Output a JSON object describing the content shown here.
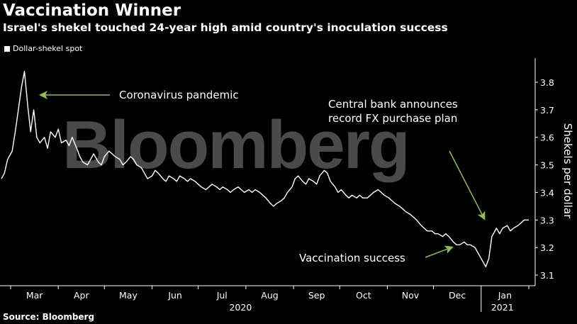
{
  "title": "Vaccination Winner",
  "subtitle": "Israel's shekel touched 24-year high amid country's inoculation success",
  "source": "Source: Bloomberg",
  "watermark": "Bloomberg",
  "colors": {
    "background": "#000000",
    "line": "#ffffff",
    "annotation_arrow": "#8bc34a"
  },
  "chart_data": {
    "type": "line",
    "title": "",
    "xlabel": "",
    "ylabel": "Shekels per dollar",
    "ylim": [
      3.05,
      3.9
    ],
    "grid": false,
    "legend_position": "top-left",
    "x_tick_labels": [
      "Mar",
      "Apr",
      "May",
      "Jun",
      "Jul",
      "Aug",
      "Sep",
      "Oct",
      "Nov",
      "Dec",
      "Jan"
    ],
    "x_group_labels": [
      "2020",
      "2021"
    ],
    "y_ticks": [
      3.1,
      3.2,
      3.3,
      3.4,
      3.5,
      3.6,
      3.7,
      3.8
    ],
    "annotations": [
      {
        "text": "Coronavirus pandemic"
      },
      {
        "text": "Central bank announces"
      },
      {
        "text": "record FX purchase plan"
      },
      {
        "text": "Vaccination success"
      }
    ],
    "series": [
      {
        "name": "Dollar-shekel spot",
        "points": [
          [
            "2020-02-24",
            3.45
          ],
          [
            "2020-02-26",
            3.47
          ],
          [
            "2020-02-28",
            3.52
          ],
          [
            "2020-03-02",
            3.55
          ],
          [
            "2020-03-04",
            3.62
          ],
          [
            "2020-03-06",
            3.7
          ],
          [
            "2020-03-08",
            3.78
          ],
          [
            "2020-03-10",
            3.84
          ],
          [
            "2020-03-12",
            3.72
          ],
          [
            "2020-03-14",
            3.62
          ],
          [
            "2020-03-16",
            3.7
          ],
          [
            "2020-03-18",
            3.6
          ],
          [
            "2020-03-20",
            3.58
          ],
          [
            "2020-03-23",
            3.6
          ],
          [
            "2020-03-25",
            3.56
          ],
          [
            "2020-03-27",
            3.62
          ],
          [
            "2020-03-30",
            3.6
          ],
          [
            "2020-04-01",
            3.63
          ],
          [
            "2020-04-03",
            3.58
          ],
          [
            "2020-04-06",
            3.59
          ],
          [
            "2020-04-08",
            3.57
          ],
          [
            "2020-04-10",
            3.6
          ],
          [
            "2020-04-13",
            3.56
          ],
          [
            "2020-04-15",
            3.53
          ],
          [
            "2020-04-17",
            3.51
          ],
          [
            "2020-04-20",
            3.5
          ],
          [
            "2020-04-22",
            3.52
          ],
          [
            "2020-04-24",
            3.54
          ],
          [
            "2020-04-27",
            3.51
          ],
          [
            "2020-04-29",
            3.5
          ],
          [
            "2020-05-01",
            3.53
          ],
          [
            "2020-05-04",
            3.55
          ],
          [
            "2020-05-06",
            3.54
          ],
          [
            "2020-05-08",
            3.53
          ],
          [
            "2020-05-11",
            3.52
          ],
          [
            "2020-05-13",
            3.5
          ],
          [
            "2020-05-15",
            3.51
          ],
          [
            "2020-05-18",
            3.53
          ],
          [
            "2020-05-20",
            3.52
          ],
          [
            "2020-05-22",
            3.5
          ],
          [
            "2020-05-25",
            3.49
          ],
          [
            "2020-05-27",
            3.47
          ],
          [
            "2020-05-29",
            3.45
          ],
          [
            "2020-06-01",
            3.46
          ],
          [
            "2020-06-03",
            3.48
          ],
          [
            "2020-06-05",
            3.47
          ],
          [
            "2020-06-08",
            3.45
          ],
          [
            "2020-06-10",
            3.44
          ],
          [
            "2020-06-12",
            3.46
          ],
          [
            "2020-06-15",
            3.45
          ],
          [
            "2020-06-17",
            3.44
          ],
          [
            "2020-06-19",
            3.46
          ],
          [
            "2020-06-22",
            3.45
          ],
          [
            "2020-06-24",
            3.44
          ],
          [
            "2020-06-26",
            3.45
          ],
          [
            "2020-06-29",
            3.44
          ],
          [
            "2020-07-01",
            3.43
          ],
          [
            "2020-07-03",
            3.42
          ],
          [
            "2020-07-06",
            3.41
          ],
          [
            "2020-07-08",
            3.42
          ],
          [
            "2020-07-10",
            3.43
          ],
          [
            "2020-07-13",
            3.42
          ],
          [
            "2020-07-15",
            3.41
          ],
          [
            "2020-07-17",
            3.42
          ],
          [
            "2020-07-20",
            3.41
          ],
          [
            "2020-07-22",
            3.4
          ],
          [
            "2020-07-24",
            3.41
          ],
          [
            "2020-07-27",
            3.42
          ],
          [
            "2020-07-29",
            3.41
          ],
          [
            "2020-07-31",
            3.4
          ],
          [
            "2020-08-03",
            3.41
          ],
          [
            "2020-08-05",
            3.4
          ],
          [
            "2020-08-07",
            3.41
          ],
          [
            "2020-08-10",
            3.4
          ],
          [
            "2020-08-12",
            3.39
          ],
          [
            "2020-08-14",
            3.38
          ],
          [
            "2020-08-17",
            3.36
          ],
          [
            "2020-08-19",
            3.35
          ],
          [
            "2020-08-21",
            3.36
          ],
          [
            "2020-08-24",
            3.37
          ],
          [
            "2020-08-26",
            3.38
          ],
          [
            "2020-08-28",
            3.4
          ],
          [
            "2020-08-31",
            3.42
          ],
          [
            "2020-09-02",
            3.45
          ],
          [
            "2020-09-04",
            3.46
          ],
          [
            "2020-09-07",
            3.44
          ],
          [
            "2020-09-09",
            3.43
          ],
          [
            "2020-09-11",
            3.45
          ],
          [
            "2020-09-14",
            3.44
          ],
          [
            "2020-09-16",
            3.43
          ],
          [
            "2020-09-18",
            3.46
          ],
          [
            "2020-09-21",
            3.48
          ],
          [
            "2020-09-23",
            3.47
          ],
          [
            "2020-09-25",
            3.44
          ],
          [
            "2020-09-28",
            3.42
          ],
          [
            "2020-09-30",
            3.4
          ],
          [
            "2020-10-02",
            3.41
          ],
          [
            "2020-10-05",
            3.39
          ],
          [
            "2020-10-07",
            3.38
          ],
          [
            "2020-10-09",
            3.39
          ],
          [
            "2020-10-12",
            3.38
          ],
          [
            "2020-10-14",
            3.39
          ],
          [
            "2020-10-16",
            3.38
          ],
          [
            "2020-10-19",
            3.38
          ],
          [
            "2020-10-21",
            3.39
          ],
          [
            "2020-10-23",
            3.4
          ],
          [
            "2020-10-26",
            3.41
          ],
          [
            "2020-10-28",
            3.4
          ],
          [
            "2020-10-30",
            3.39
          ],
          [
            "2020-11-02",
            3.38
          ],
          [
            "2020-11-04",
            3.37
          ],
          [
            "2020-11-06",
            3.36
          ],
          [
            "2020-11-09",
            3.35
          ],
          [
            "2020-11-11",
            3.34
          ],
          [
            "2020-11-13",
            3.33
          ],
          [
            "2020-11-16",
            3.32
          ],
          [
            "2020-11-18",
            3.31
          ],
          [
            "2020-11-20",
            3.3
          ],
          [
            "2020-11-23",
            3.28
          ],
          [
            "2020-11-25",
            3.27
          ],
          [
            "2020-11-27",
            3.26
          ],
          [
            "2020-11-30",
            3.26
          ],
          [
            "2020-12-02",
            3.25
          ],
          [
            "2020-12-04",
            3.25
          ],
          [
            "2020-12-07",
            3.24
          ],
          [
            "2020-12-09",
            3.25
          ],
          [
            "2020-12-11",
            3.24
          ],
          [
            "2020-12-14",
            3.22
          ],
          [
            "2020-12-16",
            3.21
          ],
          [
            "2020-12-18",
            3.21
          ],
          [
            "2020-12-21",
            3.22
          ],
          [
            "2020-12-23",
            3.21
          ],
          [
            "2020-12-25",
            3.21
          ],
          [
            "2020-12-28",
            3.2
          ],
          [
            "2020-12-30",
            3.18
          ],
          [
            "2021-01-01",
            3.16
          ],
          [
            "2021-01-04",
            3.13
          ],
          [
            "2021-01-06",
            3.16
          ],
          [
            "2021-01-08",
            3.24
          ],
          [
            "2021-01-11",
            3.27
          ],
          [
            "2021-01-13",
            3.25
          ],
          [
            "2021-01-15",
            3.27
          ],
          [
            "2021-01-18",
            3.28
          ],
          [
            "2021-01-20",
            3.26
          ],
          [
            "2021-01-22",
            3.27
          ],
          [
            "2021-01-25",
            3.28
          ],
          [
            "2021-01-27",
            3.29
          ],
          [
            "2021-01-29",
            3.3
          ],
          [
            "2021-02-01",
            3.3
          ]
        ]
      }
    ]
  }
}
